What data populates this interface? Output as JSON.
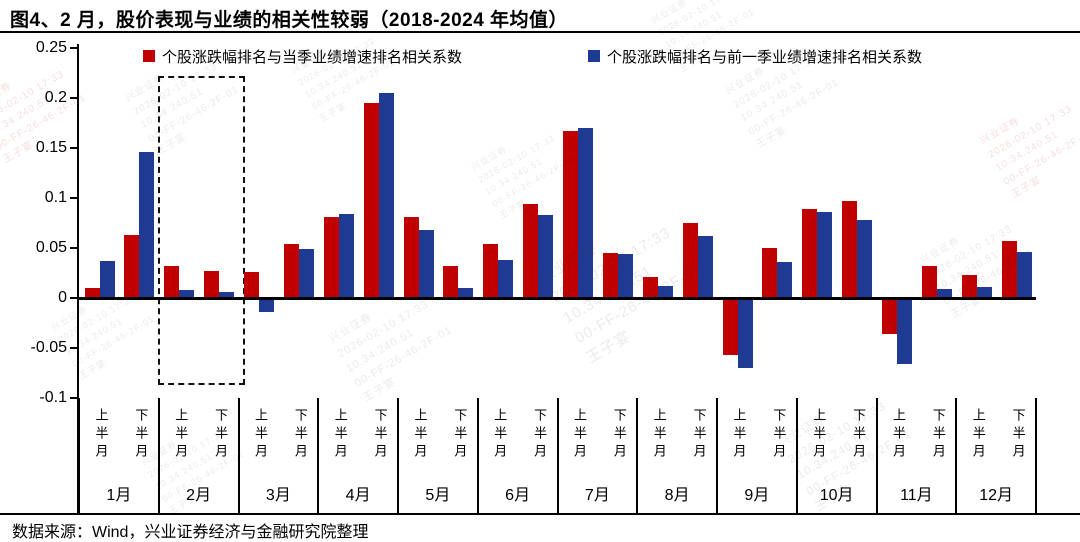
{
  "title": "图4、2 月，股价表现与业绩的相关性较弱（2018-2024 年均值）",
  "legend": [
    {
      "label": "个股涨跌幅排名与当季业绩增速排名相关系数",
      "color": "#C00000"
    },
    {
      "label": "个股涨跌幅排名与前一季业绩增速排名相关系数",
      "color": "#1F3A93"
    }
  ],
  "footer": "数据来源：Wind，兴业证券经济与金融研究院整理",
  "watermark": {
    "lines": [
      "兴业证券",
      "2026-02-10 17:33",
      "10.34.240.51",
      "00-FF-26-46-2F-01",
      "王子宴"
    ]
  },
  "chart_data": {
    "type": "bar",
    "title": "图4、2 月，股价表现与业绩的相关性较弱（2018-2024 年均值）",
    "months": [
      "1月",
      "2月",
      "3月",
      "4月",
      "5月",
      "6月",
      "7月",
      "8月",
      "9月",
      "10月",
      "11月",
      "12月"
    ],
    "half_labels": [
      "上半月",
      "下半月"
    ],
    "categories": [
      "1月上半月",
      "1月下半月",
      "2月上半月",
      "2月下半月",
      "3月上半月",
      "3月下半月",
      "4月上半月",
      "4月下半月",
      "5月上半月",
      "5月下半月",
      "6月上半月",
      "6月下半月",
      "7月上半月",
      "7月下半月",
      "8月上半月",
      "8月下半月",
      "9月上半月",
      "9月下半月",
      "10月上半月",
      "10月下半月",
      "11月上半月",
      "11月下半月",
      "12月上半月",
      "12月下半月"
    ],
    "series": [
      {
        "name": "个股涨跌幅排名与当季业绩增速排名相关系数",
        "color": "#C00000",
        "values": [
          0.01,
          0.063,
          0.032,
          0.027,
          0.026,
          0.054,
          0.081,
          0.195,
          0.081,
          0.032,
          0.054,
          0.094,
          0.167,
          0.045,
          0.021,
          0.075,
          -0.055,
          0.05,
          0.089,
          0.097,
          -0.034,
          0.032,
          0.023,
          0.057
        ]
      },
      {
        "name": "个股涨跌幅排名与前一季业绩增速排名相关系数",
        "color": "#1F3A93",
        "values": [
          0.037,
          0.146,
          0.008,
          0.006,
          -0.012,
          0.049,
          0.084,
          0.205,
          0.068,
          0.01,
          0.038,
          0.083,
          0.17,
          0.044,
          0.012,
          0.062,
          -0.068,
          0.036,
          0.086,
          0.078,
          -0.064,
          0.009,
          0.011,
          0.046
        ]
      }
    ],
    "ylim": [
      -0.1,
      0.25
    ],
    "yticks": [
      0.25,
      0.2,
      0.15,
      0.1,
      0.05,
      0,
      -0.05,
      -0.1
    ],
    "grid": false,
    "legend_position": "top",
    "highlight_box": {
      "month": "2月",
      "y_top": 0.222,
      "y_bottom": -0.087
    }
  }
}
